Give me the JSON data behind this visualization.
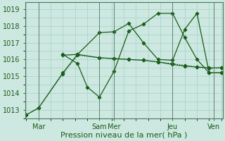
{
  "bg_color": "#cce8e0",
  "grid_color": "#aacfc8",
  "line_color": "#1a5c1a",
  "xlabel": "Pression niveau de la mer( hPa )",
  "xlabel_fontsize": 8,
  "tick_fontsize": 7,
  "ylim": [
    1012.5,
    1019.4
  ],
  "yticks": [
    1013,
    1014,
    1015,
    1016,
    1017,
    1018,
    1019
  ],
  "xlim": [
    -0.05,
    8.05
  ],
  "xtick_positions": [
    0.5,
    3.0,
    3.6,
    6.0,
    7.7
  ],
  "xtick_labels": [
    "Mar",
    "Sam",
    "Mer",
    "Jeu",
    "Ven"
  ],
  "vlines": [
    0.5,
    3.0,
    3.6,
    6.0,
    7.7
  ],
  "line1_x": [
    0.0,
    0.5,
    1.5,
    2.1,
    3.0,
    3.6,
    4.2,
    4.8,
    5.4,
    6.0,
    6.5,
    7.0,
    7.5,
    8.0
  ],
  "line1_y": [
    1012.7,
    1013.1,
    1015.15,
    1016.25,
    1016.1,
    1016.05,
    1016.0,
    1015.95,
    1015.85,
    1015.75,
    1015.65,
    1015.55,
    1015.45,
    1015.5
  ],
  "line1_style": "dotted",
  "line2_x": [
    0.0,
    0.5,
    1.5,
    2.1,
    3.0,
    3.6,
    4.2,
    4.8,
    5.4,
    6.0,
    6.5,
    7.0,
    7.5,
    8.0
  ],
  "line2_y": [
    1012.7,
    1013.1,
    1015.2,
    1016.3,
    1016.1,
    1016.05,
    1016.0,
    1015.95,
    1015.85,
    1015.7,
    1015.6,
    1015.55,
    1015.5,
    1015.5
  ],
  "line2_style": "-",
  "line3_x": [
    1.5,
    2.1,
    3.0,
    3.6,
    4.2,
    4.8,
    5.4,
    6.0,
    6.5,
    7.0,
    7.5,
    8.0
  ],
  "line3_y": [
    1016.25,
    1016.3,
    1017.6,
    1017.65,
    1018.15,
    1017.0,
    1016.0,
    1015.95,
    1017.8,
    1018.75,
    1015.2,
    1015.2
  ],
  "line3_style": "-",
  "line4_x": [
    1.5,
    2.1,
    2.5,
    3.0,
    3.6,
    4.2,
    4.8,
    5.4,
    6.0,
    6.5,
    7.0,
    7.5,
    8.0
  ],
  "line4_y": [
    1016.3,
    1015.75,
    1014.35,
    1013.75,
    1015.3,
    1017.7,
    1018.1,
    1018.75,
    1018.75,
    1017.3,
    1016.0,
    1015.2,
    1015.2
  ],
  "line4_style": "-"
}
